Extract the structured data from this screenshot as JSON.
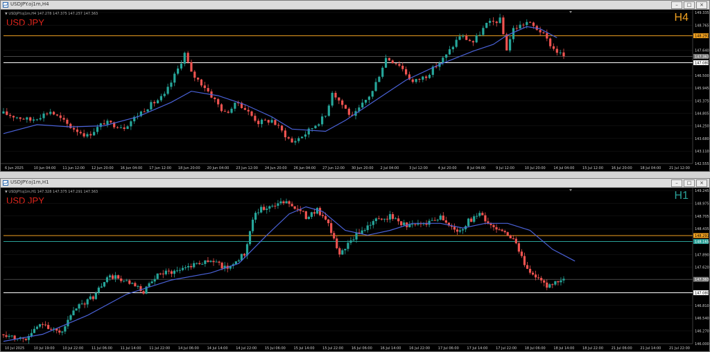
{
  "colors": {
    "bull": "#26a69a",
    "bear": "#ef5350",
    "ma": "#4a62d8",
    "bg": "#000000",
    "grid": "#1c1c1c",
    "axisText": "#cfcfcf",
    "orangeLine": "#f0a020",
    "whiteLine": "#ffffff",
    "grayLine": "#6e6e6e",
    "tfH4": "#f0a020",
    "tfH1": "#2aa198"
  },
  "icons": {
    "window": "chart-window-icon",
    "minimize": "minimize-icon",
    "maximize": "maximize-icon",
    "close": "close-icon"
  },
  "top": {
    "title": "USDJPY.oj1m,H4",
    "info": "▼ USDJPY.oj1m,H4  147.278 147.375 147.257 147.363",
    "symbol": "USD JPY",
    "timeframe": "H4",
    "chart_data": {
      "type": "candlestick",
      "ylim": [
        142.555,
        149.335
      ],
      "yticks": [
        "149.335",
        "148.765",
        "148.291",
        "147.640",
        "147.363",
        "147.080",
        "146.500",
        "145.945",
        "145.375",
        "144.805",
        "144.250",
        "143.680",
        "143.110",
        "142.555"
      ],
      "levels": [
        {
          "label": "148.291",
          "kind": "orange",
          "value": 148.291
        },
        {
          "label": "147.363",
          "kind": "gray",
          "value": 147.363
        },
        {
          "label": "147.080",
          "kind": "white",
          "value": 147.08
        }
      ],
      "xlabels": [
        "6 Jun 2025",
        "10 Jun 04:00",
        "11 Jun 12:00",
        "12 Jun 20:00",
        "16 Jun 04:00",
        "17 Jun 12:00",
        "18 Jun 20:00",
        "20 Jun 04:00",
        "23 Jun 12:00",
        "24 Jun 20:00",
        "26 Jun 04:00",
        "27 Jun 12:00",
        "30 Jun 20:00",
        "2 Jul 04:00",
        "3 Jul 12:00",
        "4 Jul 20:00",
        "8 Jul 04:00",
        "9 Jul 12:00",
        "10 Jul 20:00",
        "14 Jul 04:00",
        "15 Jul 12:00",
        "16 Jul 20:00",
        "18 Jul 04:00",
        "21 Jul 12:00"
      ],
      "path": [
        [
          0,
          144.8
        ],
        [
          8,
          144.5
        ],
        [
          14,
          144.9
        ],
        [
          20,
          144.2
        ],
        [
          25,
          143.8
        ],
        [
          30,
          144.4
        ],
        [
          36,
          144.2
        ],
        [
          42,
          145.0
        ],
        [
          48,
          145.6
        ],
        [
          52,
          146.8
        ],
        [
          54,
          147.5
        ],
        [
          56,
          146.6
        ],
        [
          60,
          146.0
        ],
        [
          66,
          144.8
        ],
        [
          70,
          145.3
        ],
        [
          76,
          144.4
        ],
        [
          80,
          144.5
        ],
        [
          86,
          143.5
        ],
        [
          90,
          143.9
        ],
        [
          96,
          144.7
        ],
        [
          98,
          145.8
        ],
        [
          104,
          144.6
        ],
        [
          110,
          145.8
        ],
        [
          114,
          147.3
        ],
        [
          118,
          147.0
        ],
        [
          122,
          146.2
        ],
        [
          126,
          146.5
        ],
        [
          132,
          147.4
        ],
        [
          136,
          148.3
        ],
        [
          140,
          148.0
        ],
        [
          144,
          148.8
        ],
        [
          148,
          149.0
        ],
        [
          150,
          147.7
        ],
        [
          152,
          148.6
        ],
        [
          156,
          148.9
        ],
        [
          160,
          148.5
        ],
        [
          164,
          147.7
        ],
        [
          167,
          147.36
        ]
      ],
      "ma": [
        [
          0,
          143.9
        ],
        [
          10,
          144.3
        ],
        [
          20,
          144.2
        ],
        [
          30,
          144.25
        ],
        [
          40,
          144.65
        ],
        [
          50,
          145.3
        ],
        [
          56,
          145.8
        ],
        [
          64,
          145.6
        ],
        [
          72,
          145.2
        ],
        [
          80,
          144.65
        ],
        [
          86,
          144.1
        ],
        [
          96,
          144.0
        ],
        [
          102,
          144.5
        ],
        [
          110,
          145.3
        ],
        [
          120,
          146.3
        ],
        [
          130,
          147.0
        ],
        [
          140,
          147.6
        ],
        [
          146,
          147.9
        ],
        [
          150,
          148.3
        ],
        [
          156,
          148.7
        ],
        [
          160,
          148.6
        ],
        [
          165,
          148.2
        ]
      ]
    }
  },
  "bottom": {
    "title": "USDJPY.oj1m,H1",
    "info": "▼ USDJPY.oj1m,H1  147.328 147.375 147.291 147.363",
    "symbol": "USD JPY",
    "timeframe": "H1",
    "chart_data": {
      "type": "candlestick",
      "ylim": [
        146.0,
        149.245
      ],
      "yticks": [
        "149.245",
        "148.975",
        "148.705",
        "148.435",
        "148.291",
        "148.165",
        "147.890",
        "147.620",
        "147.363",
        "147.080",
        "146.810",
        "146.540",
        "146.270",
        "146.000"
      ],
      "levels": [
        {
          "label": "148.291",
          "kind": "orange",
          "value": 148.291
        },
        {
          "label": "148.165",
          "kind": "teal",
          "value": 148.165
        },
        {
          "label": "147.363",
          "kind": "gray",
          "value": 147.363
        },
        {
          "label": "147.080",
          "kind": "white",
          "value": 147.08
        }
      ],
      "xlabels": [
        "10 Jul 2025",
        "10 Jul 19:00",
        "10 Jul 22:00",
        "11 Jul 06:00",
        "11 Jul 14:00",
        "11 Jul 22:00",
        "14 Jul 06:00",
        "14 Jul 14:00",
        "14 Jul 22:00",
        "15 Jul 06:00",
        "15 Jul 14:00",
        "15 Jul 22:00",
        "16 Jul 06:00",
        "16 Jul 14:00",
        "16 Jul 22:00",
        "17 Jul 06:00",
        "17 Jul 14:00",
        "17 Jul 22:00",
        "18 Jul 06:00",
        "18 Jul 14:00",
        "18 Jul 22:00",
        "21 Jul 06:00",
        "21 Jul 14:00",
        "21 Jul 22:00"
      ],
      "path": [
        [
          0,
          146.2
        ],
        [
          8,
          146.1
        ],
        [
          14,
          146.45
        ],
        [
          20,
          146.2
        ],
        [
          26,
          146.75
        ],
        [
          32,
          147.0
        ],
        [
          38,
          147.45
        ],
        [
          44,
          147.3
        ],
        [
          50,
          147.1
        ],
        [
          56,
          147.5
        ],
        [
          62,
          147.55
        ],
        [
          68,
          147.7
        ],
        [
          74,
          147.75
        ],
        [
          80,
          147.6
        ],
        [
          86,
          147.9
        ],
        [
          90,
          148.8
        ],
        [
          96,
          148.95
        ],
        [
          102,
          149.0
        ],
        [
          108,
          148.7
        ],
        [
          112,
          148.85
        ],
        [
          116,
          148.5
        ],
        [
          120,
          147.9
        ],
        [
          126,
          148.3
        ],
        [
          132,
          148.6
        ],
        [
          138,
          148.7
        ],
        [
          144,
          148.5
        ],
        [
          150,
          148.55
        ],
        [
          156,
          148.7
        ],
        [
          162,
          148.35
        ],
        [
          166,
          148.6
        ],
        [
          170,
          148.75
        ],
        [
          174,
          148.5
        ],
        [
          178,
          148.4
        ],
        [
          182,
          148.2
        ],
        [
          186,
          147.7
        ],
        [
          190,
          147.4
        ],
        [
          194,
          147.2
        ],
        [
          200,
          147.363
        ]
      ],
      "ma": [
        [
          0,
          146.05
        ],
        [
          14,
          146.2
        ],
        [
          30,
          146.6
        ],
        [
          44,
          147.05
        ],
        [
          60,
          147.35
        ],
        [
          74,
          147.5
        ],
        [
          84,
          147.7
        ],
        [
          94,
          148.3
        ],
        [
          102,
          148.75
        ],
        [
          108,
          148.9
        ],
        [
          114,
          148.8
        ],
        [
          122,
          148.4
        ],
        [
          130,
          148.3
        ],
        [
          138,
          148.4
        ],
        [
          146,
          148.55
        ],
        [
          156,
          148.55
        ],
        [
          164,
          148.45
        ],
        [
          172,
          148.55
        ],
        [
          180,
          148.55
        ],
        [
          188,
          148.4
        ],
        [
          196,
          148.0
        ],
        [
          204,
          147.75
        ]
      ]
    }
  }
}
